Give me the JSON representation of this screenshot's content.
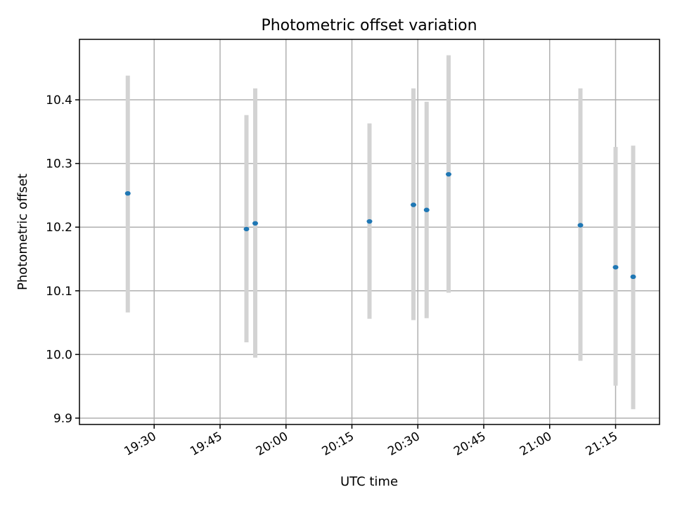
{
  "chart_data": {
    "type": "scatter",
    "title": "Photometric offset variation",
    "xlabel": "UTC time",
    "ylabel": "Photometric offset",
    "xlim": [
      "19:13",
      "21:25"
    ],
    "ylim": [
      9.89,
      10.495
    ],
    "grid": true,
    "x_ticks": [
      "19:30",
      "19:45",
      "20:00",
      "20:15",
      "20:30",
      "20:45",
      "21:00",
      "21:15"
    ],
    "y_ticks": [
      9.9,
      10.0,
      10.1,
      10.2,
      10.3,
      10.4
    ],
    "y_tick_labels": [
      "9.9",
      "10.0",
      "10.1",
      "10.2",
      "10.3",
      "10.4"
    ],
    "point_color": "#1f77b4",
    "errorbar_color": "#d3d3d3",
    "points": [
      {
        "x": "19:24",
        "y": 10.253,
        "ylow": 10.066,
        "yhigh": 10.438
      },
      {
        "x": "19:51",
        "y": 10.197,
        "ylow": 10.019,
        "yhigh": 10.376
      },
      {
        "x": "19:53",
        "y": 10.206,
        "ylow": 9.995,
        "yhigh": 10.418
      },
      {
        "x": "20:19",
        "y": 10.209,
        "ylow": 10.056,
        "yhigh": 10.363
      },
      {
        "x": "20:29",
        "y": 10.235,
        "ylow": 10.054,
        "yhigh": 10.418
      },
      {
        "x": "20:32",
        "y": 10.227,
        "ylow": 10.057,
        "yhigh": 10.397
      },
      {
        "x": "20:37",
        "y": 10.283,
        "ylow": 10.097,
        "yhigh": 10.47
      },
      {
        "x": "21:07",
        "y": 10.203,
        "ylow": 9.99,
        "yhigh": 10.418
      },
      {
        "x": "21:15",
        "y": 10.137,
        "ylow": 9.951,
        "yhigh": 10.326
      },
      {
        "x": "21:19",
        "y": 10.122,
        "ylow": 9.914,
        "yhigh": 10.328
      }
    ]
  }
}
